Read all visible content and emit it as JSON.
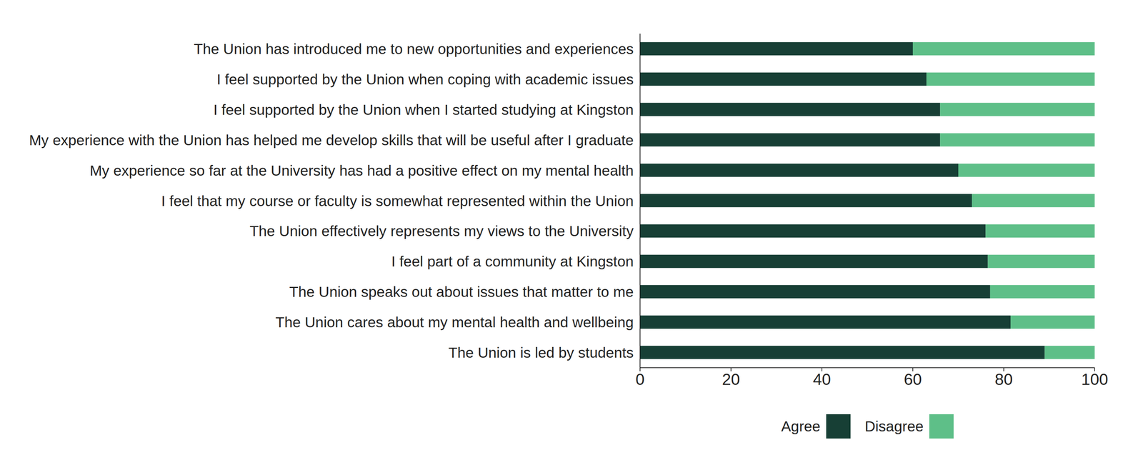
{
  "chart_data": {
    "type": "bar",
    "orientation": "horizontal",
    "stacked": true,
    "legend": "bottom",
    "grid": false,
    "categories": [
      "The Union has introduced me to new opportunities and experiences",
      "I feel supported by the Union when coping with academic issues",
      "I feel supported by the Union when I started studying at Kingston",
      "My experience with the Union has helped me develop skills that will be useful after I graduate",
      "My experience so far at the University has had a positive effect on my mental health",
      "I feel that my course or faculty is somewhat represented within the Union",
      "The Union effectively represents my views to the University",
      "I feel part of a community at Kingston",
      "The Union speaks out about issues that matter to me",
      "The Union cares about my mental health and wellbeing",
      "The Union is led by students"
    ],
    "series": [
      {
        "name": "Agree",
        "color": "#173f35",
        "values": [
          60,
          63,
          66,
          66,
          70,
          73,
          76,
          76.5,
          77,
          81.5,
          89
        ]
      },
      {
        "name": "Disagree",
        "color": "#5ebf88",
        "values": [
          40,
          37,
          34,
          34,
          30,
          27,
          24,
          23.5,
          23,
          18.5,
          11
        ]
      }
    ],
    "xlim": [
      0,
      100
    ],
    "xticks": [
      0,
      20,
      40,
      60,
      80,
      100
    ]
  }
}
